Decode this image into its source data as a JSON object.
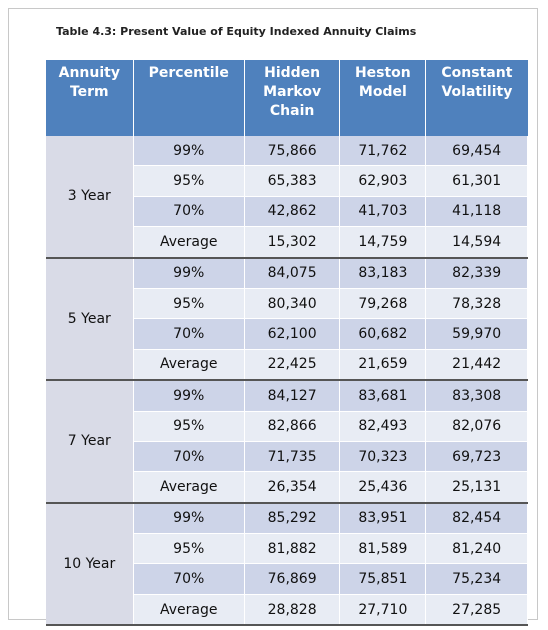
{
  "title": "Table 4.3:  Present Value of Equity Indexed Annuity Claims",
  "table": {
    "headers": [
      "Annuity Term",
      "Percentile",
      "Hidden Markov Chain",
      "Heston Model",
      "Constant Volatility"
    ],
    "groups": [
      {
        "term": "3 Year",
        "rows": [
          [
            "99%",
            "75,866",
            "71,762",
            "69,454"
          ],
          [
            "95%",
            "65,383",
            "62,903",
            "61,301"
          ],
          [
            "70%",
            "42,862",
            "41,703",
            "41,118"
          ],
          [
            "Average",
            "15,302",
            "14,759",
            "14,594"
          ]
        ]
      },
      {
        "term": "5 Year",
        "rows": [
          [
            "99%",
            "84,075",
            "83,183",
            "82,339"
          ],
          [
            "95%",
            "80,340",
            "79,268",
            "78,328"
          ],
          [
            "70%",
            "62,100",
            "60,682",
            "59,970"
          ],
          [
            "Average",
            "22,425",
            "21,659",
            "21,442"
          ]
        ]
      },
      {
        "term": "7 Year",
        "rows": [
          [
            "99%",
            "84,127",
            "83,681",
            "83,308"
          ],
          [
            "95%",
            "82,866",
            "82,493",
            "82,076"
          ],
          [
            "70%",
            "71,735",
            "70,323",
            "69,723"
          ],
          [
            "Average",
            "26,354",
            "25,436",
            "25,131"
          ]
        ]
      },
      {
        "term": "10 Year",
        "rows": [
          [
            "99%",
            "85,292",
            "83,951",
            "82,454"
          ],
          [
            "95%",
            "81,882",
            "81,589",
            "81,240"
          ],
          [
            "70%",
            "76,869",
            "75,851",
            "75,234"
          ],
          [
            "Average",
            "28,828",
            "27,710",
            "27,285"
          ]
        ]
      }
    ]
  }
}
